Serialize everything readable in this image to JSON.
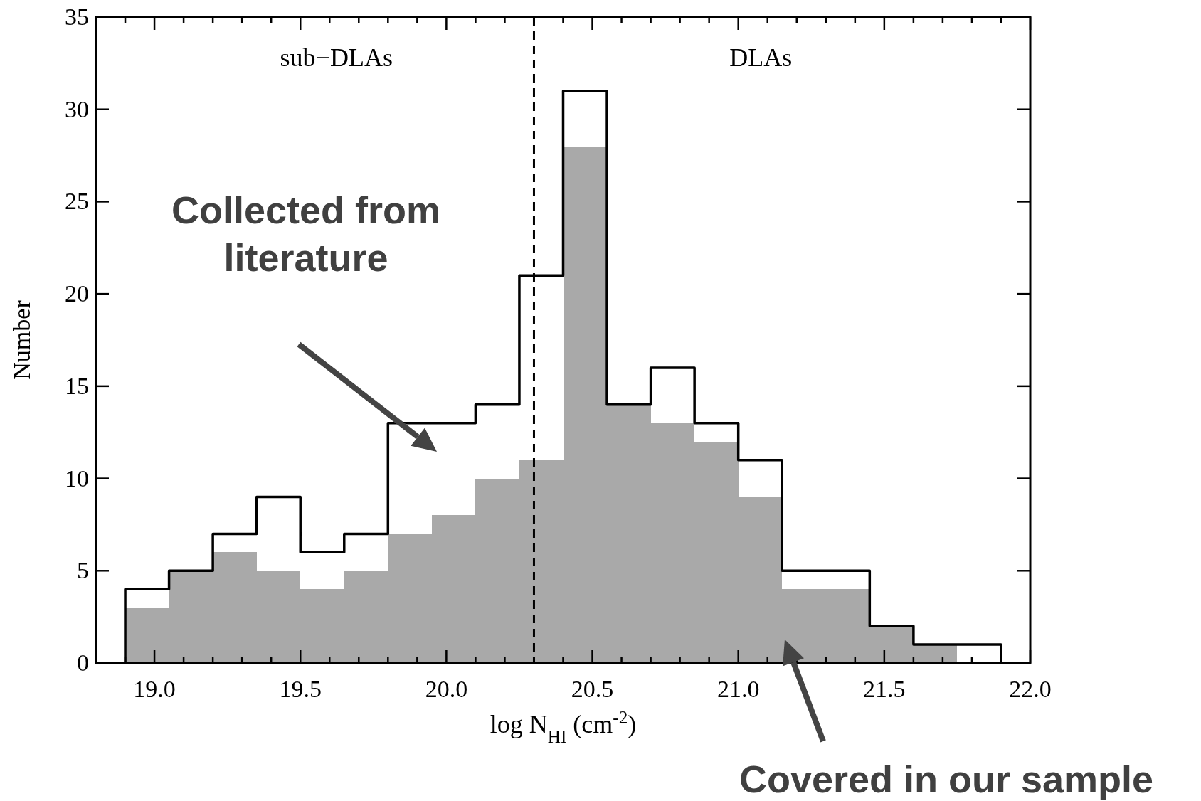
{
  "chart_data": {
    "type": "histogram",
    "xlabel": "log N$_{HI}$ (cm$^{-2}$)",
    "ylabel": "Number",
    "bins": [
      18.9,
      19.05,
      19.2,
      19.35,
      19.5,
      19.65,
      19.8,
      19.95,
      20.1,
      20.25,
      20.4,
      20.55,
      20.7,
      20.85,
      21.0,
      21.15,
      21.3,
      21.45,
      21.6,
      21.75,
      21.9
    ],
    "series": [
      {
        "color": "#a9a9a9",
        "values": [
          3,
          5,
          6,
          5,
          4,
          5,
          7,
          8,
          10,
          11,
          28,
          14,
          13,
          12,
          9,
          4,
          4,
          2,
          1,
          0
        ]
      },
      {
        "type": "step",
        "color": "#000000",
        "x": [
          18.9,
          18.9,
          19.05,
          19.2,
          19.35,
          19.5,
          19.65,
          19.8,
          19.95,
          20.1,
          20.25,
          20.4,
          20.55,
          20.7,
          20.85,
          21.0,
          21.15,
          21.3,
          21.45,
          21.6,
          21.75,
          21.9
        ],
        "values": [
          0,
          4,
          5,
          7,
          9,
          6,
          7,
          13,
          13,
          14,
          21,
          31,
          14,
          16,
          13,
          11,
          5,
          5,
          2,
          1,
          1,
          0
        ]
      }
    ],
    "xlim": [
      18.8,
      22.0
    ],
    "ylim": [
      0,
      35
    ],
    "xticks": [
      {
        "value": 18.8,
        "label": null
      },
      {
        "value": 18.9,
        "label": null
      },
      {
        "value": 19.0,
        "label": "19.0"
      },
      {
        "value": 19.1,
        "label": null
      },
      {
        "value": 19.2,
        "label": null
      },
      {
        "value": 19.3,
        "label": null
      },
      {
        "value": 19.4,
        "label": null
      },
      {
        "value": 19.5,
        "label": "19.5"
      },
      {
        "value": 19.6,
        "label": null
      },
      {
        "value": 19.7,
        "label": null
      },
      {
        "value": 19.8,
        "label": null
      },
      {
        "value": 19.9,
        "label": null
      },
      {
        "value": 20.0,
        "label": "20.0"
      },
      {
        "value": 20.1,
        "label": null
      },
      {
        "value": 20.2,
        "label": null
      },
      {
        "value": 20.3,
        "label": null
      },
      {
        "value": 20.4,
        "label": null
      },
      {
        "value": 20.5,
        "label": "20.5"
      },
      {
        "value": 20.6,
        "label": null
      },
      {
        "value": 20.7,
        "label": null
      },
      {
        "value": 20.8,
        "label": null
      },
      {
        "value": 20.9,
        "label": null
      },
      {
        "value": 21.0,
        "label": "21.0"
      },
      {
        "value": 21.1,
        "label": null
      },
      {
        "value": 21.2,
        "label": null
      },
      {
        "value": 21.3,
        "label": null
      },
      {
        "value": 21.4,
        "label": null
      },
      {
        "value": 21.5,
        "label": "21.5"
      },
      {
        "value": 21.6,
        "label": null
      },
      {
        "value": 21.7,
        "label": null
      },
      {
        "value": 21.8,
        "label": null
      },
      {
        "value": 21.9,
        "label": null
      },
      {
        "value": 22.0,
        "label": "22.0"
      }
    ],
    "yticks": [
      0,
      5,
      10,
      15,
      20,
      25,
      30,
      35
    ],
    "ref_lines": [
      {
        "axis": "x",
        "value": 20.3,
        "line_style": "dashed",
        "color": "#000000"
      }
    ],
    "annotations": [
      "sub−DLAs",
      "DLAs",
      "Collected from literature",
      "Covered in our sample"
    ]
  }
}
